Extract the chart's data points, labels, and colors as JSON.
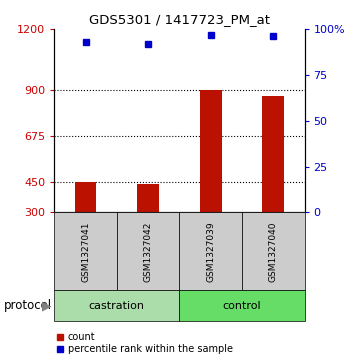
{
  "title": "GDS5301 / 1417723_PM_at",
  "samples": [
    "GSM1327041",
    "GSM1327042",
    "GSM1327039",
    "GSM1327040"
  ],
  "counts": [
    450,
    438,
    900,
    870
  ],
  "percentiles": [
    93,
    92,
    97,
    96
  ],
  "ylim_left": [
    300,
    1200
  ],
  "ylim_right": [
    0,
    100
  ],
  "yticks_left": [
    300,
    450,
    675,
    900,
    1200
  ],
  "yticks_right": [
    0,
    25,
    50,
    75,
    100
  ],
  "ytick_labels_right": [
    "0",
    "25",
    "50",
    "75",
    "100%"
  ],
  "hlines": [
    450,
    675,
    900
  ],
  "bar_color": "#bb1100",
  "dot_color": "#0000cc",
  "protocols": [
    {
      "label": "castration",
      "samples": [
        0,
        1
      ],
      "color": "#aaddaa"
    },
    {
      "label": "control",
      "samples": [
        2,
        3
      ],
      "color": "#66dd66"
    }
  ],
  "sample_box_color": "#cccccc",
  "left_axis_color": "#cc0000",
  "right_axis_color": "#0000cc",
  "bar_width": 0.35,
  "protocol_label": "protocol"
}
